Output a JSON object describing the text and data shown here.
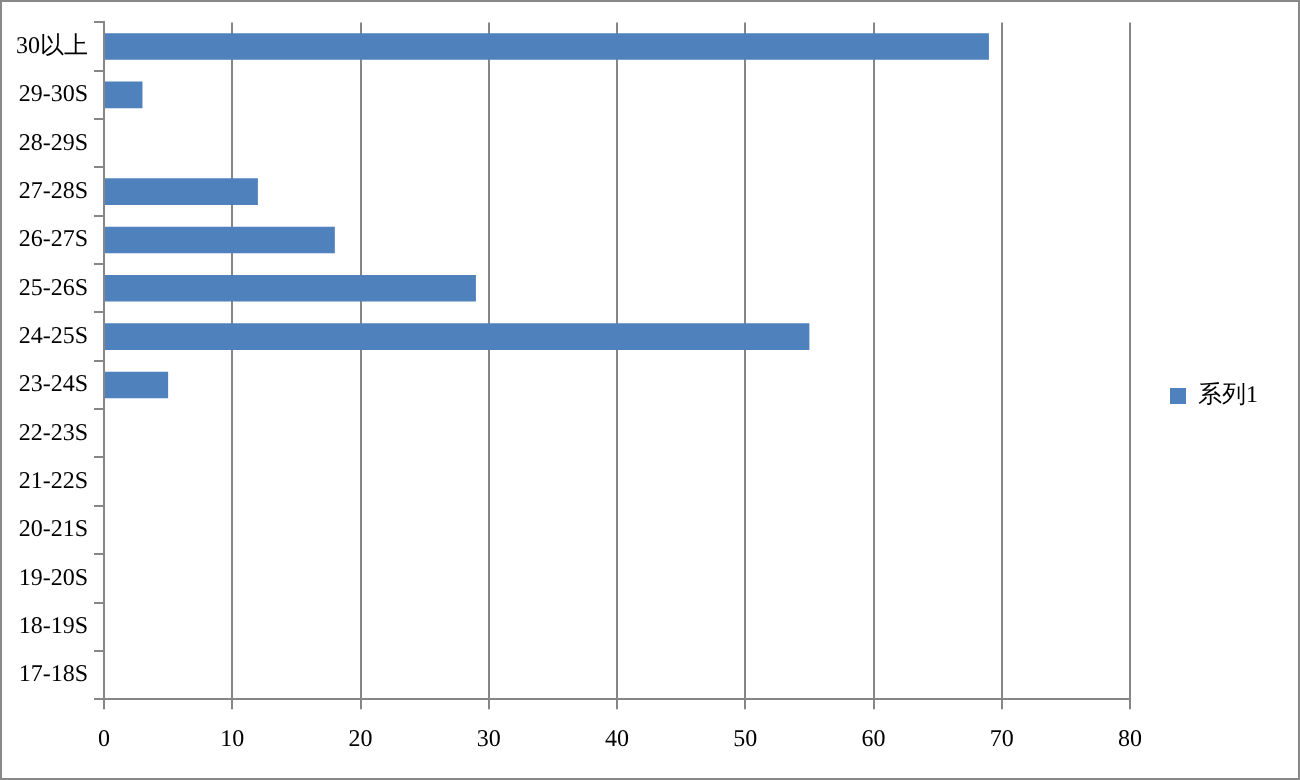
{
  "chart_data": {
    "type": "bar",
    "orientation": "horizontal",
    "categories": [
      "30以上",
      "29-30S",
      "28-29S",
      "27-28S",
      "26-27S",
      "25-26S",
      "24-25S",
      "23-24S",
      "22-23S",
      "21-22S",
      "20-21S",
      "19-20S",
      "18-19S",
      "17-18S"
    ],
    "series": [
      {
        "name": "系列1",
        "color": "#4f81bd",
        "values": [
          69,
          3,
          0,
          12,
          18,
          29,
          55,
          5,
          0,
          0,
          0,
          0,
          0,
          0
        ]
      }
    ],
    "xlim": [
      0,
      80
    ],
    "xticks": [
      0,
      10,
      20,
      30,
      40,
      50,
      60,
      70,
      80
    ],
    "grid": "x",
    "legend": "right"
  }
}
